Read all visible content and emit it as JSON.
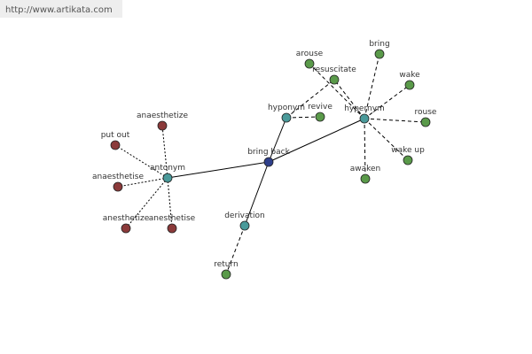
{
  "watermark": "http://www.artikata.com",
  "nodes": [
    {
      "label": "bring back"
    },
    {
      "label": "antonym"
    },
    {
      "label": "hyponym"
    },
    {
      "label": "hypernym"
    },
    {
      "label": "derivation"
    },
    {
      "label": "anaesthetize"
    },
    {
      "label": "put out"
    },
    {
      "label": "anaesthetise"
    },
    {
      "label": "anesthetize"
    },
    {
      "label": "anesthetise"
    },
    {
      "label": "arouse"
    },
    {
      "label": "resuscitate"
    },
    {
      "label": "revive"
    },
    {
      "label": "bring"
    },
    {
      "label": "wake"
    },
    {
      "label": "rouse"
    },
    {
      "label": "wake up"
    },
    {
      "label": "awaken"
    },
    {
      "label": "return"
    }
  ]
}
